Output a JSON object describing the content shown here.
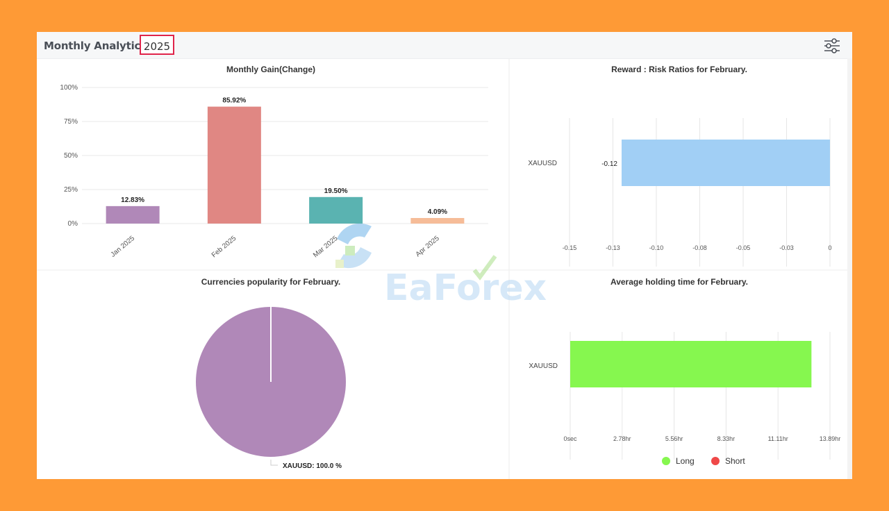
{
  "header": {
    "title": "Monthly Analytics",
    "year": "2025",
    "settings_icon": "sliders-icon"
  },
  "watermark": {
    "text": "EaForex"
  },
  "colors": {
    "purple": "#b088b8",
    "salmon": "#e08783",
    "teal": "#5ab3b1",
    "peach": "#f6bc98",
    "blue": "#a1cff5",
    "green": "#86f74f",
    "red": "#ef4848"
  },
  "chart_data": [
    {
      "type": "bar",
      "title": "Monthly Gain(Change)",
      "categories": [
        "Jan 2025",
        "Feb 2025",
        "Mar 2025",
        "Apr 2025"
      ],
      "values": [
        12.83,
        85.92,
        19.5,
        4.09
      ],
      "data_labels": [
        "12.83%",
        "85.92%",
        "19.50%",
        "4.09%"
      ],
      "colors": [
        "#b088b8",
        "#e08783",
        "#5ab3b1",
        "#f6bc98"
      ],
      "yticks": [
        "100%",
        "75%",
        "50%",
        "25%",
        "0%"
      ],
      "ylim": [
        0,
        100
      ],
      "grid": true
    },
    {
      "type": "bar",
      "orientation": "horizontal",
      "title": "Reward : Risk Ratios for February.",
      "categories": [
        "XAUUSD"
      ],
      "values": [
        -0.12
      ],
      "data_labels": [
        "-0.12"
      ],
      "xticks": [
        "-0.15",
        "-0.13",
        "-0.10",
        "-0.08",
        "-0.05",
        "-0.03",
        "0"
      ],
      "xlim": [
        -0.15,
        0
      ],
      "grid": true
    },
    {
      "type": "pie",
      "title": "Currencies popularity for February.",
      "categories": [
        "XAUUSD"
      ],
      "values": [
        100.0
      ],
      "data_labels": [
        "XAUUSD: 100.0 %"
      ]
    },
    {
      "type": "bar",
      "orientation": "horizontal",
      "title": "Average holding time for February.",
      "categories": [
        "XAUUSD"
      ],
      "series": [
        {
          "name": "Long",
          "values": [
            12.9
          ],
          "color": "#86f74f"
        },
        {
          "name": "Short",
          "values": [
            0
          ],
          "color": "#ef4848"
        }
      ],
      "xticks": [
        "0sec",
        "2.78hr",
        "5.56hr",
        "8.33hr",
        "11.11hr",
        "13.89hr"
      ],
      "xlim": [
        0,
        13.89
      ],
      "unit": "hr",
      "legend": "bottom",
      "grid": true
    }
  ]
}
